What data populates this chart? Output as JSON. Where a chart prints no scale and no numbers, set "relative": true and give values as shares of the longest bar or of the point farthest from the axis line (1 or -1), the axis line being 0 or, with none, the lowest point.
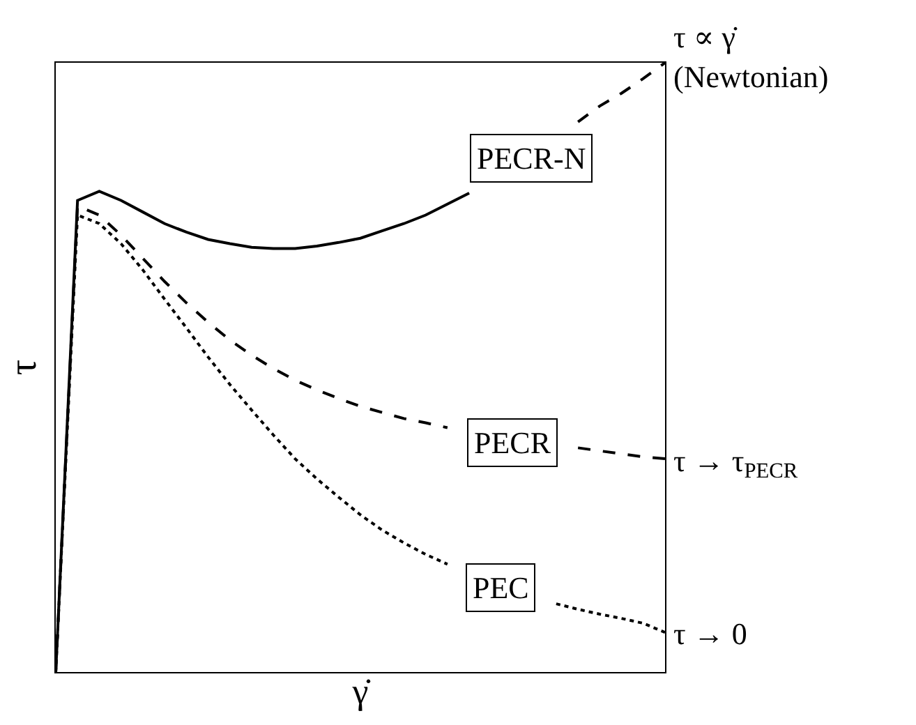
{
  "chart_data": {
    "type": "line",
    "relative": true,
    "xlabel": "γ̇",
    "ylabel": "τ",
    "tick_labels": false,
    "grid": false,
    "legend": false,
    "marker": "none",
    "categories": [
      null,
      null,
      null,
      null,
      null,
      null,
      null,
      null,
      null,
      null,
      null,
      null,
      null,
      null,
      null,
      null,
      null,
      null,
      null,
      null,
      null,
      null,
      null,
      null,
      null,
      null,
      null,
      null,
      null
    ],
    "series": [
      {
        "name": "PECR-N",
        "color": "#000000",
        "line_style": "solid",
        "values": [
          0,
          0.774,
          0.789,
          0.774,
          0.755,
          0.736,
          0.722,
          0.71,
          0.703,
          0.697,
          0.695,
          0.695,
          0.699,
          0.705,
          0.712,
          0.724,
          0.736,
          0.75,
          0.768,
          0.786,
          null,
          null,
          null,
          null,
          null,
          null,
          null,
          null,
          null
        ]
      },
      {
        "type": "line",
        "color": "#000000",
        "line_style": "dashed",
        "values": [
          null,
          null,
          null,
          null,
          null,
          null,
          null,
          null,
          null,
          null,
          null,
          null,
          null,
          null,
          null,
          null,
          null,
          null,
          null,
          null,
          null,
          null,
          null,
          null,
          0.903,
          0.929,
          0.95,
          0.974,
          1
        ]
      },
      {
        "name": "PECR",
        "color": "#000000",
        "line_style": "dashed",
        "values": [
          0,
          0.765,
          0.75,
          0.717,
          0.679,
          0.641,
          0.606,
          0.574,
          0.545,
          0.52,
          0.498,
          0.479,
          0.463,
          0.449,
          0.436,
          0.426,
          0.416,
          0.409,
          0.401,
          null,
          null,
          null,
          null,
          null,
          0.368,
          0.363,
          0.358,
          0.353,
          0.35
        ]
      },
      {
        "name": "PEC",
        "color": "#000000",
        "line_style": "dotted",
        "values": [
          0,
          0.75,
          0.736,
          0.703,
          0.66,
          0.612,
          0.565,
          0.517,
          0.472,
          0.43,
          0.389,
          0.35,
          0.317,
          0.287,
          0.258,
          0.233,
          0.212,
          0.193,
          0.177,
          null,
          null,
          null,
          null,
          0.112,
          0.103,
          0.095,
          0.088,
          0.08,
          0.065
        ]
      }
    ],
    "annotations": [
      "τ ∝ γ̇\n(Newtonian)",
      "τ → τ$_{PECR}$",
      "τ → 0"
    ]
  }
}
